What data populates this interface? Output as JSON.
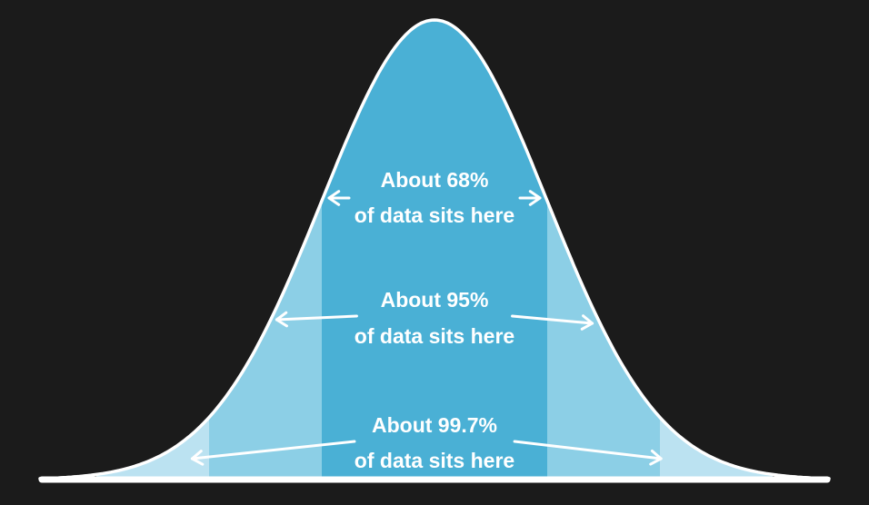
{
  "chart_data": {
    "type": "area",
    "title": "",
    "xlabel": "",
    "ylabel": "",
    "distribution": "normal",
    "mean": 0,
    "sd": 1,
    "xlim": [
      -3.5,
      3.5
    ],
    "ylim": [
      0,
      0.4
    ],
    "grid": false,
    "bands": [
      {
        "from": -1,
        "to": 1,
        "color": "#4AB0D5"
      },
      {
        "from": -2,
        "to": -1,
        "color": "#8CCFE6"
      },
      {
        "from": 1,
        "to": 2,
        "color": "#8CCFE6"
      },
      {
        "from": -3,
        "to": -2,
        "color": "#BBE2F1"
      },
      {
        "from": 2,
        "to": 3,
        "color": "#BBE2F1"
      }
    ],
    "annotations": [
      {
        "line1": "About 68%",
        "line2": "of data sits here",
        "range": [
          -1,
          1
        ]
      },
      {
        "line1": "About 95%",
        "line2": "of data sits here",
        "range": [
          -2,
          2
        ]
      },
      {
        "line1": "About 99.7%",
        "line2": "of data sits here",
        "range": [
          -3,
          3
        ]
      }
    ]
  },
  "colors": {
    "background": "#1B1B1B",
    "curve": "#FFFFFF",
    "text": "#FFFFFF",
    "arrow": "#FFFFFF"
  }
}
